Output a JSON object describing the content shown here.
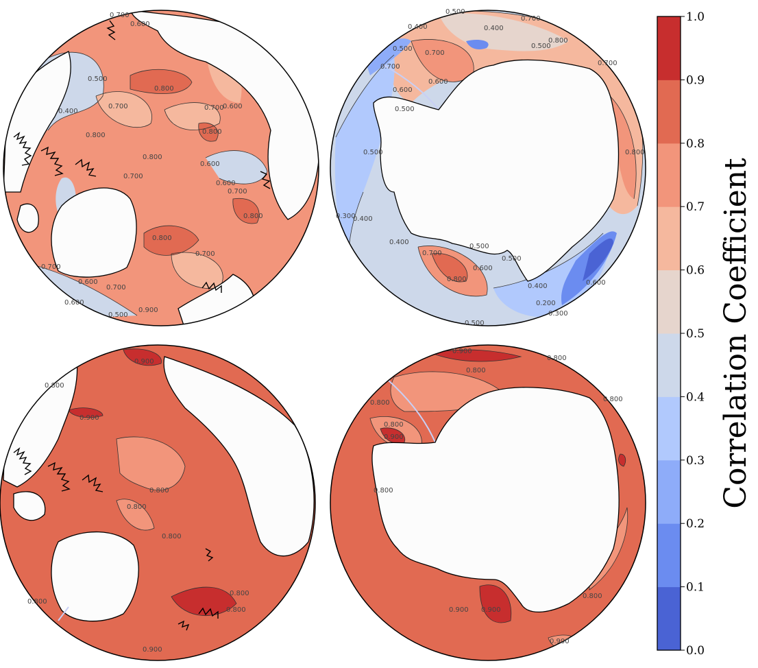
{
  "colorbar": {
    "label": "Correlation Coefficient",
    "levels": [
      0.0,
      0.1,
      0.2,
      0.3,
      0.4,
      0.5,
      0.6,
      0.7,
      0.8,
      0.9,
      1.0
    ],
    "tick_labels": [
      "0.0",
      "0.1",
      "0.2",
      "0.3",
      "0.4",
      "0.5",
      "0.6",
      "0.7",
      "0.8",
      "0.9",
      "1.0"
    ],
    "colors": [
      "#4a63d4",
      "#6b8cf0",
      "#8eacf9",
      "#b1c9fd",
      "#cdd8ea",
      "#e6d5cd",
      "#f5b89e",
      "#f2957b",
      "#e16a52",
      "#c72e2e"
    ]
  },
  "panels": [
    {
      "id": "arctic-top",
      "region": "Arctic",
      "base_level": 0.7,
      "contour_labels": [
        "0.700",
        "0.600",
        "0.800",
        "0.500",
        "0.400",
        "0.600",
        "0.700",
        "0.800",
        "0.700",
        "0.600",
        "0.800",
        "0.800",
        "0.700",
        "0.600",
        "0.700",
        "0.800",
        "0.700",
        "0.600",
        "0.700",
        "0.500",
        "0.800",
        "0.900",
        "0.600",
        "0.700"
      ]
    },
    {
      "id": "antarctic-top",
      "region": "Antarctic",
      "base_level": 0.4,
      "contour_labels": [
        "0.500",
        "0.400",
        "0.700",
        "0.500",
        "0.600",
        "0.700",
        "0.600",
        "0.700",
        "0.800",
        "0.500",
        "0.400",
        "0.500",
        "0.300",
        "0.400",
        "0.400",
        "0.700",
        "0.800",
        "0.600",
        "0.500",
        "0.400",
        "0.500",
        "0.200",
        "0.300",
        "0.600",
        "0.500",
        "0.700",
        "0.800",
        "0.500"
      ]
    },
    {
      "id": "arctic-bottom",
      "region": "Arctic",
      "base_level": 0.8,
      "contour_labels": [
        "0.900",
        "0.900",
        "0.800",
        "0.800",
        "0.800",
        "0.800",
        "0.800",
        "0.800",
        "0.900",
        "0.800"
      ]
    },
    {
      "id": "antarctic-bottom",
      "region": "Antarctic",
      "base_level": 0.8,
      "contour_labels": [
        "0.900",
        "0.800",
        "0.800",
        "0.800",
        "0.900",
        "0.800",
        "0.800",
        "0.900",
        "0.900",
        "0.800",
        "0.800",
        "0.900"
      ]
    }
  ]
}
